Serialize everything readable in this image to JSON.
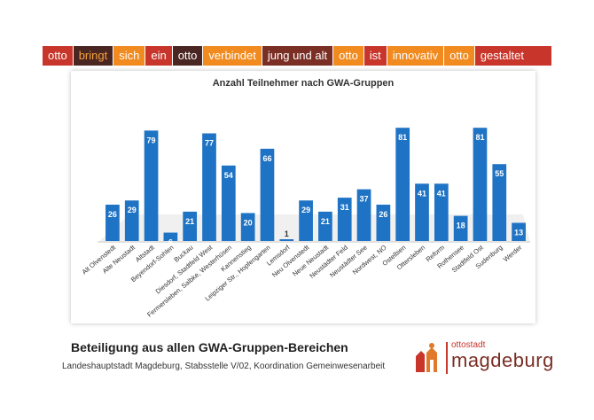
{
  "slogan": [
    {
      "text": "otto",
      "style": "c-red"
    },
    {
      "text": "bringt",
      "style": "c-brown"
    },
    {
      "text": "sich",
      "style": "c-orange"
    },
    {
      "text": "ein",
      "style": "c-red"
    },
    {
      "text": "otto",
      "style": "c-dark"
    },
    {
      "text": "verbindet",
      "style": "c-orange"
    },
    {
      "text": "jung und alt",
      "style": "c-brownred"
    },
    {
      "text": "otto",
      "style": "c-orange"
    },
    {
      "text": "ist",
      "style": "c-red"
    },
    {
      "text": "innovativ",
      "style": "c-orange"
    },
    {
      "text": "otto",
      "style": "c-orange"
    },
    {
      "text": "gestaltet",
      "style": "c-red"
    }
  ],
  "chart_data": {
    "type": "bar",
    "title": "Anzahl Teilnehmer nach GWA-Gruppen",
    "categories": [
      "Alt Olvenstedt",
      "Alte Neustadt",
      "Altstadt",
      "Beyendorf-Sohlen",
      "Buckau",
      "Diesdorf, Stadtfeld West",
      "Fermersleben, Salbke, Westerhüsen",
      "Kannenstieg",
      "Leipziger Str., Hopfengarten",
      "Lemsdorf",
      "Neu Olvenstedt",
      "Neue Neustadt",
      "Neustädter Feld",
      "Neustädter See",
      "Nordwest, NO",
      "Ostelbien",
      "Ottersleben",
      "Reform",
      "Rothensee",
      "Stadtfeld Ost",
      "Sudenburg",
      "Werder"
    ],
    "values": [
      26,
      29,
      79,
      6,
      21,
      77,
      54,
      20,
      66,
      1,
      29,
      21,
      31,
      37,
      26,
      81,
      41,
      41,
      18,
      81,
      55,
      13
    ],
    "ylim": [
      0,
      90
    ],
    "grid": false,
    "legend": "none",
    "bar_color": "#1f73c4"
  },
  "footer": {
    "title": "Beteiligung aus allen GWA-Gruppen-Bereichen",
    "subtitle": "Landeshauptstadt Magdeburg, Stabsstelle V/02, Koordination Gemeinwesenarbeit"
  },
  "logo": {
    "small_text": "ottostadt",
    "big_text": "magdeburg",
    "accent_color": "#c8352a"
  }
}
